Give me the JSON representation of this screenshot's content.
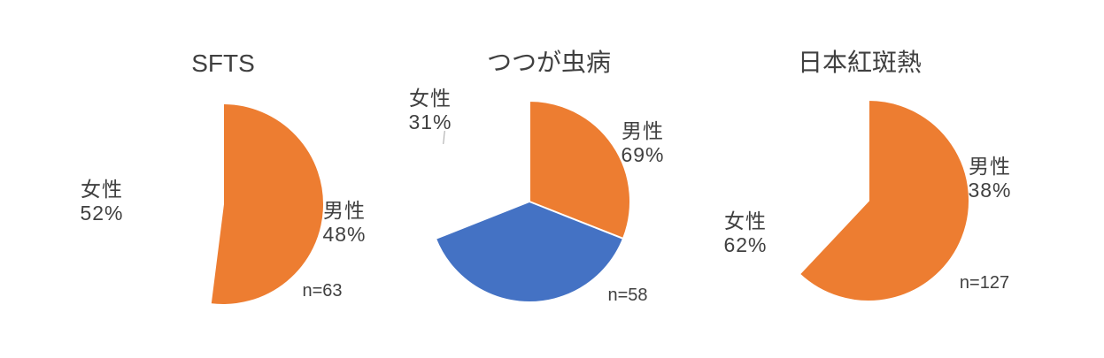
{
  "palette": {
    "male_blue": "#4472C4",
    "female_orange": "#ED7D31",
    "text_gray": "#404040",
    "leader_line_gray": "#a6a6a6",
    "background": "#ffffff"
  },
  "chart_data": [
    {
      "type": "pie",
      "title": "SFTS",
      "categories": [
        "男性",
        "女性"
      ],
      "values": [
        48,
        52
      ],
      "value_labels": [
        "48%",
        "52%"
      ],
      "sample_size": 63,
      "sample_size_label": "n=63",
      "colors": [
        "#4472C4",
        "#ED7D31"
      ],
      "start_angle_deg": 0,
      "direction": "clockwise",
      "legend": "none",
      "label_position": "outside"
    },
    {
      "type": "pie",
      "title": "つつが虫病",
      "categories": [
        "男性",
        "女性"
      ],
      "values": [
        69,
        31
      ],
      "value_labels": [
        "69%",
        "31%"
      ],
      "sample_size": 58,
      "sample_size_label": "n=58",
      "colors": [
        "#4472C4",
        "#ED7D31"
      ],
      "start_angle_deg": 0,
      "direction": "clockwise",
      "legend": "none",
      "label_position": "outside"
    },
    {
      "type": "pie",
      "title": "日本紅斑熱",
      "categories": [
        "男性",
        "女性"
      ],
      "values": [
        38,
        62
      ],
      "value_labels": [
        "38%",
        "62%"
      ],
      "sample_size": 127,
      "sample_size_label": "n=127",
      "colors": [
        "#4472C4",
        "#ED7D31"
      ],
      "start_angle_deg": 0,
      "direction": "clockwise",
      "legend": "none",
      "label_position": "outside"
    }
  ]
}
